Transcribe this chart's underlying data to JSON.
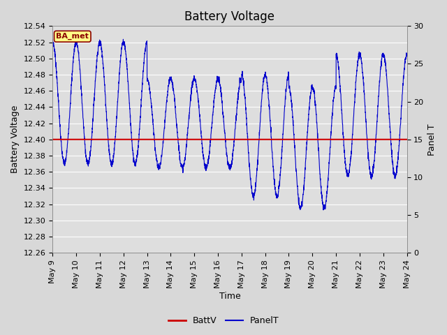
{
  "title": "Battery Voltage",
  "xlabel": "Time",
  "ylabel_left": "Battery Voltage",
  "ylabel_right": "Panel T",
  "ylim_left": [
    12.26,
    12.54
  ],
  "ylim_right": [
    0,
    30
  ],
  "yticks_left": [
    12.26,
    12.28,
    12.3,
    12.32,
    12.34,
    12.36,
    12.38,
    12.4,
    12.42,
    12.44,
    12.46,
    12.48,
    12.5,
    12.52,
    12.54
  ],
  "yticks_right": [
    0,
    5,
    10,
    15,
    20,
    25,
    30
  ],
  "xtick_labels": [
    "May 9",
    "May 10",
    "May 11",
    "May 12",
    "May 13",
    "May 14",
    "May 15",
    "May 16",
    "May 17",
    "May 18",
    "May 19",
    "May 20",
    "May 21",
    "May 22",
    "May 23",
    "May 24"
  ],
  "batt_color": "#cc0000",
  "panel_color": "#0000cc",
  "background_color": "#dedede",
  "grid_color": "#ffffff",
  "annotation_text": "BA_met",
  "annotation_bg": "#ffff88",
  "annotation_border": "#8b0000",
  "legend_labels": [
    "BattV",
    "PanelT"
  ],
  "batt_value": 12.4,
  "title_fontsize": 12,
  "axis_fontsize": 9,
  "tick_fontsize": 8
}
